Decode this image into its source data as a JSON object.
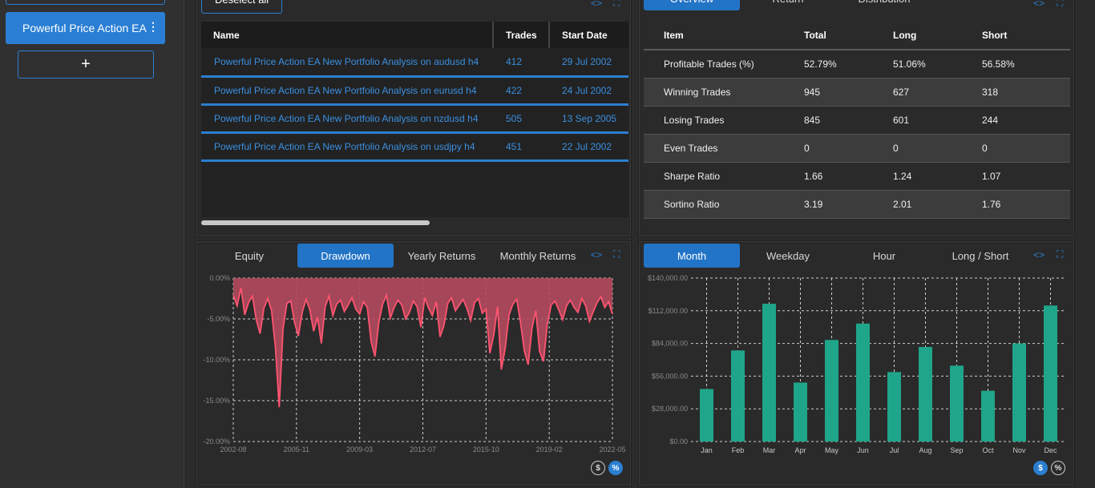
{
  "sidebar": {
    "project_label": "Powerful Price Action EA",
    "menu_glyph": "⋮",
    "add_label": "+"
  },
  "strategies": {
    "deselect_label": "Deselect all",
    "columns": [
      "Name",
      "Trades",
      "Start Date"
    ],
    "rows": [
      {
        "name": "Powerful Price Action EA New Portfolio Analysis on  audusd h4",
        "trades": "412",
        "start": "29 Jul 2002"
      },
      {
        "name": "Powerful Price Action EA New Portfolio Analysis on eurusd h4",
        "trades": "422",
        "start": "24 Jul 2002"
      },
      {
        "name": "Powerful Price Action EA New Portfolio Analysis on nzdusd h4",
        "trades": "505",
        "start": "13 Sep 2005"
      },
      {
        "name": "Powerful Price Action EA New Portfolio Analysis on usdjpy h4",
        "trades": "451",
        "start": "22 Jul 2002"
      }
    ]
  },
  "stats": {
    "tabs": [
      "Overview",
      "Return",
      "Distribution"
    ],
    "active_tab": "Overview",
    "columns": [
      "Item",
      "Total",
      "Long",
      "Short"
    ],
    "rows": [
      [
        "Profitable Trades (%)",
        "52.79%",
        "51.06%",
        "56.58%"
      ],
      [
        "Winning Trades",
        "945",
        "627",
        "318"
      ],
      [
        "Losing Trades",
        "845",
        "601",
        "244"
      ],
      [
        "Even Trades",
        "0",
        "0",
        "0"
      ],
      [
        "Sharpe Ratio",
        "1.66",
        "1.24",
        "1.07"
      ],
      [
        "Sortino Ratio",
        "3.19",
        "2.01",
        "1.76"
      ]
    ]
  },
  "icons": {
    "code": "<>",
    "expand": "⛶",
    "dollar": "$",
    "percent": "%"
  },
  "drawdown_panel": {
    "tabs": [
      "Equity",
      "Drawdown",
      "Yearly Returns",
      "Monthly Returns"
    ],
    "active_tab": "Drawdown"
  },
  "monthly_panel": {
    "tabs": [
      "Month",
      "Weekday",
      "Hour",
      "Long / Short"
    ],
    "active_tab": "Month"
  },
  "chart_data": [
    {
      "type": "area",
      "title": "",
      "xlabel": "",
      "ylabel": "",
      "x_ticks": [
        "2002-08",
        "2005-11",
        "2009-03",
        "2012-07",
        "2015-10",
        "2019-02",
        "2022-05"
      ],
      "y_ticks": [
        "0.00%",
        "-5.00%",
        "-10.00%",
        "-15.00%",
        "-20.00%"
      ],
      "ylim": [
        -20,
        0
      ],
      "color": "#ff5470",
      "fill": "#b24a5d",
      "series": [
        {
          "values": [
            -2.1,
            -3.4,
            -1.2,
            -4.5,
            -3.0,
            -2.2,
            -5.1,
            -6.8,
            -3.7,
            -2.5,
            -4.0,
            -8.5,
            -15.8,
            -6.2,
            -3.1,
            -2.8,
            -5.4,
            -7.1,
            -4.2,
            -2.6,
            -3.9,
            -6.5,
            -4.8,
            -8.0,
            -3.5,
            -2.2,
            -4.6,
            -3.2,
            -2.7,
            -4.1,
            -3.3,
            -2.4,
            -3.8,
            -4.4,
            -2.9,
            -3.6,
            -7.8,
            -9.6,
            -5.4,
            -3.2,
            -2.1,
            -4.9,
            -3.6,
            -2.7,
            -3.3,
            -5.0,
            -4.2,
            -2.8,
            -3.5,
            -6.0,
            -2.4,
            -3.7,
            -4.6,
            -2.9,
            -7.2,
            -5.8,
            -3.1,
            -2.4,
            -4.0,
            -3.3,
            -2.6,
            -3.7,
            -5.2,
            -3.0,
            -2.5,
            -4.3,
            -3.8,
            -9.2,
            -7.0,
            -3.5,
            -11.2,
            -8.6,
            -4.5,
            -3.2,
            -2.6,
            -5.4,
            -8.9,
            -10.6,
            -6.1,
            -4.0,
            -9.0,
            -10.2,
            -5.6,
            -3.3,
            -2.8,
            -3.9,
            -5.1,
            -3.4,
            -2.7,
            -3.6,
            -4.2,
            -2.5,
            -3.4,
            -5.3,
            -4.1,
            -3.0,
            -2.3,
            -3.6,
            -2.9,
            -4.4
          ]
        }
      ]
    },
    {
      "type": "bar",
      "title": "",
      "xlabel": "",
      "ylabel": "",
      "categories": [
        "Jan",
        "Feb",
        "Mar",
        "Apr",
        "May",
        "Jun",
        "Jul",
        "Aug",
        "Sep",
        "Oct",
        "Nov",
        "Dec"
      ],
      "values": [
        45000,
        78000,
        118000,
        50500,
        87000,
        101000,
        59500,
        81000,
        65000,
        43500,
        84000,
        116500
      ],
      "y_ticks": [
        "$140,000.00",
        "$112,000.00",
        "$84,000.00",
        "$56,000.00",
        "$28,000.00",
        "$0.00"
      ],
      "ylim": [
        0,
        140000
      ],
      "color": "#1fa58a"
    }
  ]
}
